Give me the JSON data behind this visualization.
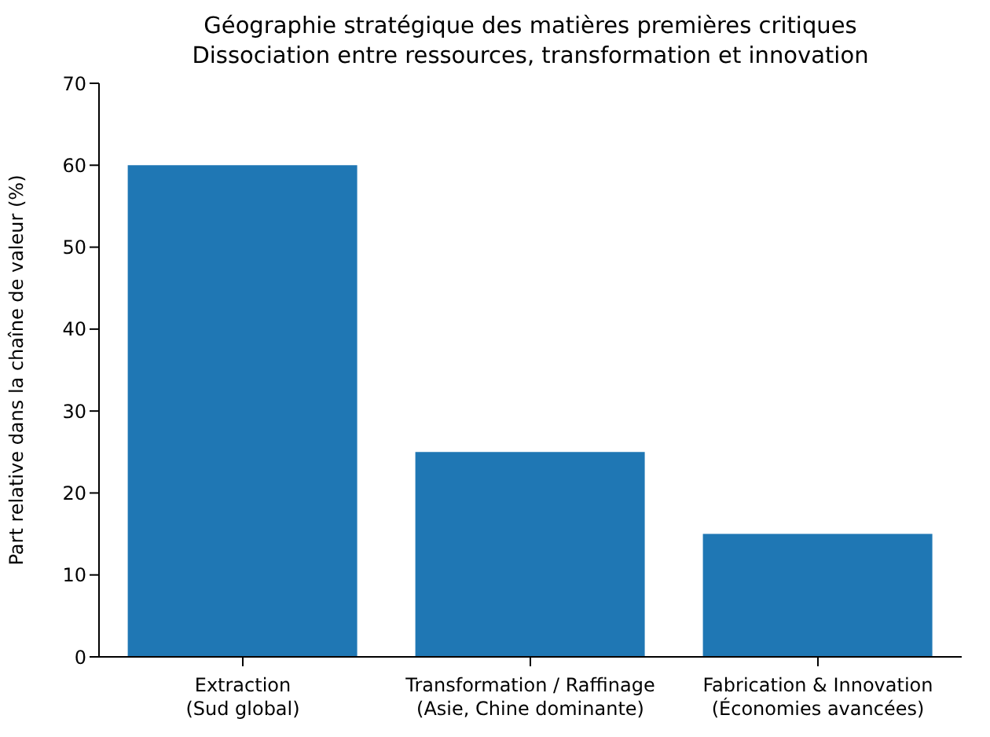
{
  "chart_data": {
    "type": "bar",
    "title": "Géographie stratégique des matières premières critiques\nDissociation entre ressources, transformation et innovation",
    "ylabel": "Part relative dans la chaîne de valeur (%)",
    "categories": [
      "Extraction\n(Sud global)",
      "Transformation / Raffinage\n(Asie, Chine dominante)",
      "Fabrication & Innovation\n(Économies avancées)"
    ],
    "values": [
      60,
      25,
      15
    ],
    "color": "#1f77b4",
    "ylim": [
      0,
      70
    ],
    "yticks": [
      0,
      10,
      20,
      30,
      40,
      50,
      60,
      70
    ],
    "grid": false
  }
}
